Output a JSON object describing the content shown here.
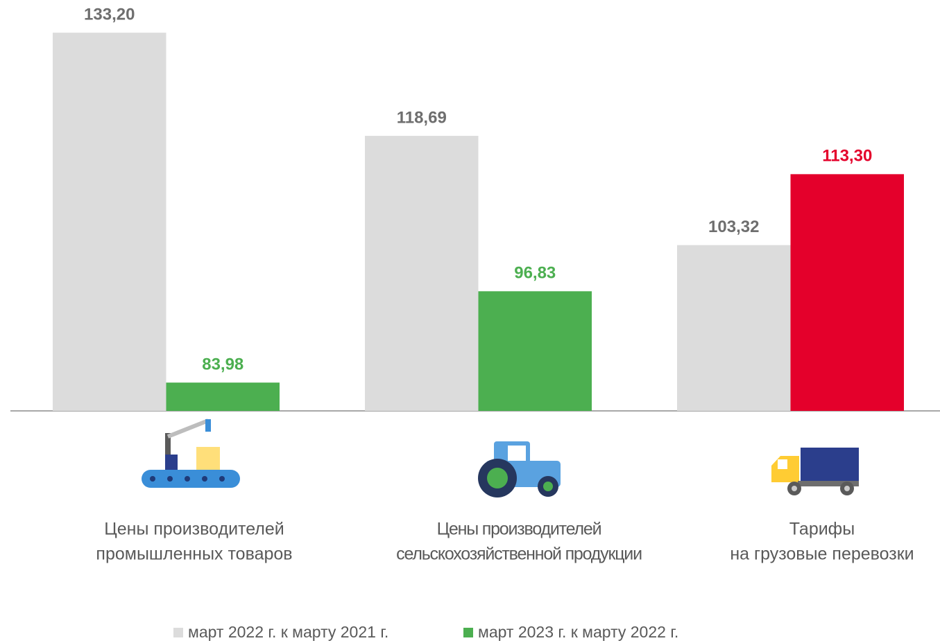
{
  "chart_data": {
    "type": "bar",
    "categories": [
      [
        "Цены производителей",
        "промышленных товаров"
      ],
      [
        "Цены производителей",
        "сельскохозяйственной продукции"
      ],
      [
        "Тарифы",
        "на грузовые перевозки"
      ]
    ],
    "series": [
      {
        "name": "март 2022 г. к марту 2021 г.",
        "color": "#dcdcdc",
        "label_color": "#6e6e6e",
        "values": [
          133.2,
          118.69,
          103.32
        ],
        "value_labels": [
          "133,20",
          "118,69",
          "103,32"
        ]
      },
      {
        "name": "март 2023 г. к марту 2022 г.",
        "color": "#4caf50",
        "colors": [
          "#4caf50",
          "#4caf50",
          "#e4002b"
        ],
        "values": [
          83.98,
          96.83,
          113.3
        ],
        "value_labels": [
          "83,98",
          "96,83",
          "113,30"
        ]
      }
    ],
    "ylim": [
      80,
      134
    ],
    "legend": "bottom"
  }
}
